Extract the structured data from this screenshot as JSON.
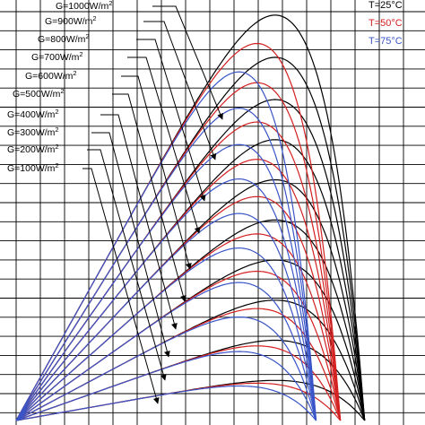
{
  "chart_data": {
    "type": "line",
    "title": "",
    "xlabel": "",
    "ylabel": "",
    "grid": true,
    "legend_position": "top-right",
    "irradiance_labels": [
      {
        "text": "G=1000W/m",
        "sup": "2",
        "G": 1000
      },
      {
        "text": "G=900W/m",
        "sup": "2",
        "G": 900
      },
      {
        "text": "G=800W/m",
        "sup": "2",
        "G": 800
      },
      {
        "text": "G=700W/m",
        "sup": "2",
        "G": 700
      },
      {
        "text": "G=600W/m",
        "sup": "2",
        "G": 600
      },
      {
        "text": "G=500W/m",
        "sup": "2",
        "G": 500
      },
      {
        "text": "G=400W/m",
        "sup": "2",
        "G": 400
      },
      {
        "text": "G=300W/m",
        "sup": "2",
        "G": 300
      },
      {
        "text": "G=200W/m",
        "sup": "2",
        "G": 200
      },
      {
        "text": "G=100W/m",
        "sup": "2",
        "G": 100
      }
    ],
    "temperatures": [
      {
        "label": "T=25°C",
        "color": "#000000"
      },
      {
        "label": "T=50°C",
        "color": "#d42020"
      },
      {
        "label": "T=75°C",
        "color": "#3a55c8"
      }
    ],
    "curve_model": {
      "voc_by_temperature": [
        0.86,
        0.8,
        0.74
      ],
      "pmax_by_G": {
        "1000": 0.96,
        "900": 0.86,
        "800": 0.76,
        "700": 0.665,
        "600": 0.57,
        "500": 0.475,
        "400": 0.38,
        "300": 0.285,
        "200": 0.19,
        "100": 0.095
      },
      "pmax_temperature_factor": [
        1.0,
        0.93,
        0.86
      ]
    }
  }
}
